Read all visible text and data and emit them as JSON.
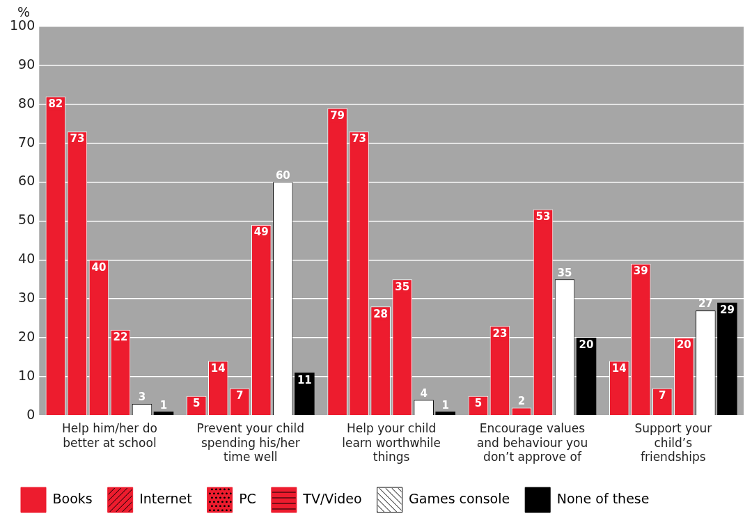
{
  "chart_data": {
    "type": "bar",
    "ylabel": "%",
    "categories": [
      "Help him/her do better at school",
      "Prevent your child spending his/her time well",
      "Help your child learn worthwhile things",
      "Encourage values and behaviour you don’t approve of",
      "Support your child’s friendships"
    ],
    "series": [
      {
        "name": "Books",
        "color": "#ed1c2e",
        "values": [
          82,
          5,
          79,
          5,
          14
        ]
      },
      {
        "name": "Internet",
        "color": "#ed1c2e",
        "values": [
          73,
          14,
          73,
          23,
          39
        ]
      },
      {
        "name": "PC",
        "color": "#ed1c2e",
        "values": [
          40,
          7,
          28,
          2,
          7
        ]
      },
      {
        "name": "TV/Video",
        "color": "#ed1c2e",
        "values": [
          22,
          49,
          35,
          53,
          20
        ]
      },
      {
        "name": "Games console",
        "color": "#ffffff",
        "values": [
          3,
          60,
          4,
          35,
          27
        ]
      },
      {
        "name": "None of these",
        "color": "#000000",
        "values": [
          1,
          11,
          1,
          20,
          29
        ]
      }
    ],
    "ylim": [
      0,
      100
    ],
    "yticks": [
      0,
      10,
      20,
      30,
      40,
      50,
      60,
      70,
      80,
      90,
      100
    ],
    "grid": "y",
    "legend": "bottom",
    "data_labels": true
  }
}
